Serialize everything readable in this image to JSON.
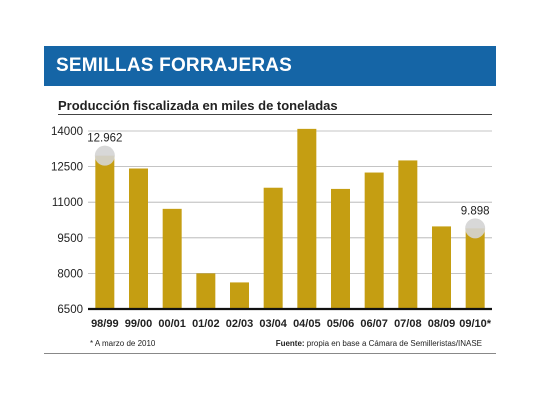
{
  "header": {
    "title": "SEMILLAS FORRAJERAS"
  },
  "chart_data": {
    "type": "bar",
    "title": "Producción fiscalizada en miles de toneladas",
    "categories": [
      "98/99",
      "99/00",
      "00/01",
      "01/02",
      "02/03",
      "03/04",
      "04/05",
      "05/06",
      "06/07",
      "07/08",
      "08/09",
      "09/10*"
    ],
    "values": [
      12962,
      12420,
      10720,
      8000,
      7620,
      11610,
      14090,
      11560,
      12250,
      12760,
      9980,
      9898
    ],
    "ylim": [
      6500,
      14000
    ],
    "yticks": [
      "14000",
      "12500",
      "11000",
      "9500",
      "8000",
      "6500"
    ],
    "ytick_values": [
      14000,
      12500,
      11000,
      9500,
      8000,
      6500
    ],
    "data_labels": [
      {
        "index": 0,
        "text": "12.962"
      },
      {
        "index": 11,
        "text": "9.898"
      }
    ],
    "grid": true,
    "bar_color": "#c59e12"
  },
  "footer": {
    "note": "* A marzo de 2010",
    "source_label": "Fuente:",
    "source_text": " propia en base a Cámara de Semilleristas/INASE"
  }
}
